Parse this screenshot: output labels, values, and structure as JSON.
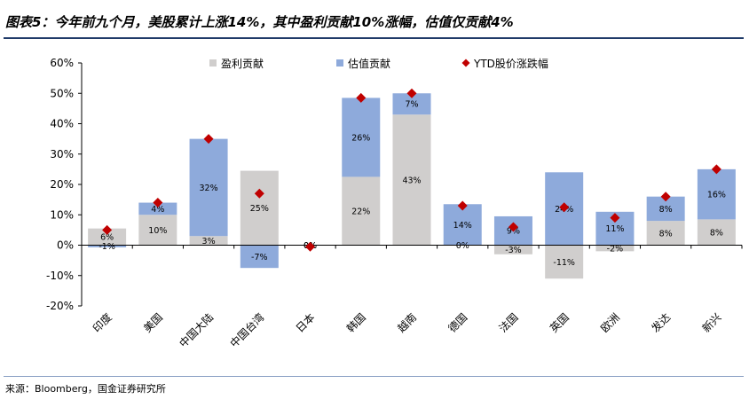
{
  "title": "图表5：今年前九个月，美股累计上涨14%，其中盈利贡献10%涨幅，估值仅贡献4%",
  "source": "来源：Bloomberg，国金证券研究所",
  "colors": {
    "earnings": "#d0cecd",
    "valuation": "#8eaadb",
    "ytd": "#c00000",
    "title_rule": "#1f3a68"
  },
  "chart_data": {
    "type": "bar",
    "stacked": true,
    "categories": [
      "印度",
      "美国",
      "中国大陆",
      "中国台湾",
      "日本",
      "韩国",
      "越南",
      "德国",
      "法国",
      "英国",
      "欧洲",
      "发达",
      "新兴"
    ],
    "series": [
      {
        "name": "盈利贡献",
        "type": "bar",
        "values": [
          5.5,
          10,
          3,
          24.5,
          0,
          22.5,
          43,
          0,
          -3,
          -11,
          -2,
          8,
          8.5
        ],
        "labels": [
          "6%",
          "10%",
          "3%",
          "25%",
          "0%",
          "22%",
          "43%",
          "0%",
          "-3%",
          "-11%",
          "-2%",
          "8%",
          "8%"
        ]
      },
      {
        "name": "估值贡献",
        "type": "bar",
        "values": [
          -0.7,
          4,
          32,
          -7.5,
          0,
          26,
          7,
          13.5,
          9.5,
          24,
          11,
          8,
          16.5
        ],
        "labels": [
          "-1%",
          "4%",
          "32%",
          "-7%",
          "0%",
          "26%",
          "7%",
          "14%",
          "9%",
          "24%",
          "11%",
          "8%",
          "16%"
        ]
      },
      {
        "name": "YTD股价涨跌幅",
        "type": "scatter",
        "values": [
          5,
          14,
          35,
          17,
          -0.5,
          48.5,
          50,
          13,
          6,
          12.5,
          9,
          16,
          25
        ]
      }
    ],
    "yticks": [
      "60%",
      "50%",
      "40%",
      "30%",
      "20%",
      "10%",
      "0%",
      "-10%",
      "-20%"
    ],
    "ylim": [
      -20,
      60
    ],
    "legend": "top",
    "grid": false
  }
}
